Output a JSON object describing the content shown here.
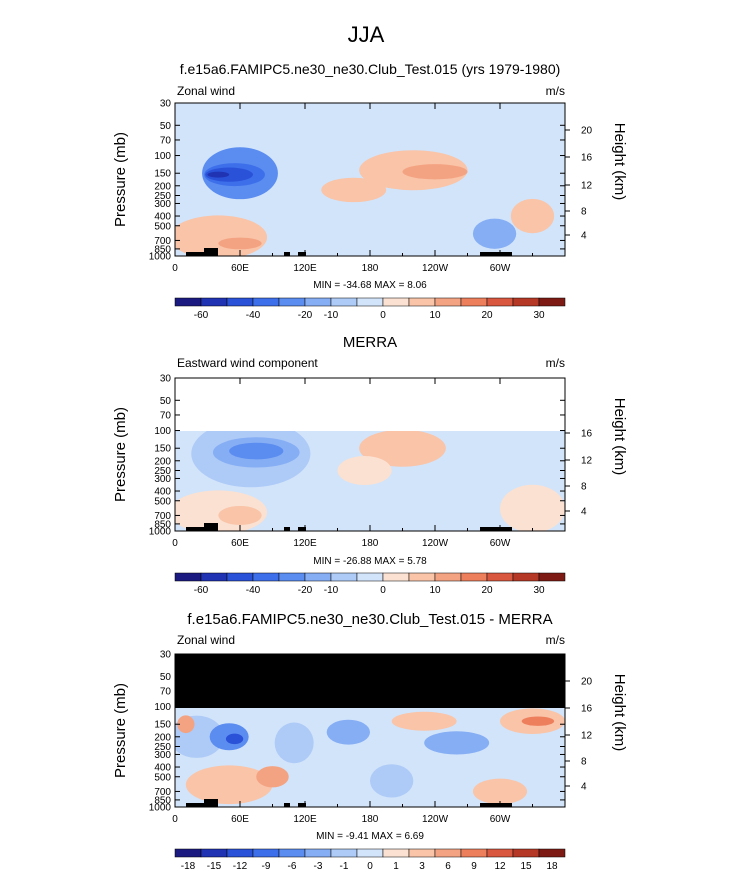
{
  "figure_title": "JJA",
  "chart_data": [
    {
      "type": "heatmap",
      "title": "f.e15a6.FAMIPC5.ne30_ne30.Club_Test.015 (yrs 1979-1980)",
      "left_label": "Zonal wind",
      "units": "m/s",
      "ylabel": "Pressure (mb)",
      "y2label": "Height (km)",
      "y_ticks": [
        "30",
        "50",
        "70",
        "100",
        "150",
        "200",
        "250",
        "300",
        "400",
        "500",
        "700",
        "850",
        "1000"
      ],
      "y2_ticks": [
        "20",
        "16",
        "12",
        "8",
        "4"
      ],
      "x_ticks": [
        "0",
        "60E",
        "120E",
        "180",
        "120W",
        "60W"
      ],
      "stats": "MIN = -34.68  MAX =  8.06",
      "colorbar_labels": [
        "-60",
        "-40",
        "-20",
        "-10",
        "0",
        "10",
        "20",
        "30"
      ],
      "colors": [
        "#1a1a80",
        "#1f33b3",
        "#2a52d8",
        "#3d6fea",
        "#5b8cf0",
        "#86aef4",
        "#aecaf7",
        "#d2e4fa",
        "#fbe1d1",
        "#f9c4a8",
        "#f4a382",
        "#ee7f5d",
        "#d9573f",
        "#b53826",
        "#7d1a14"
      ],
      "fields": [
        {
          "kind": "ellipse",
          "cx": 60,
          "cy": 150,
          "rx": 35,
          "ry": 80,
          "level": 4
        },
        {
          "kind": "ellipse",
          "cx": 55,
          "cy": 155,
          "rx": 28,
          "ry": 40,
          "level": 3
        },
        {
          "kind": "ellipse",
          "cx": 50,
          "cy": 155,
          "rx": 22,
          "ry": 25,
          "level": 2
        },
        {
          "kind": "ellipse",
          "cx": 40,
          "cy": 155,
          "rx": 10,
          "ry": 10,
          "level": 1
        },
        {
          "kind": "ellipse",
          "cx": 220,
          "cy": 140,
          "rx": 50,
          "ry": 60,
          "level": 9
        },
        {
          "kind": "ellipse",
          "cx": 240,
          "cy": 145,
          "rx": 30,
          "ry": 25,
          "level": 10
        },
        {
          "kind": "ellipse",
          "cx": 40,
          "cy": 650,
          "rx": 45,
          "ry": 300,
          "level": 9
        },
        {
          "kind": "ellipse",
          "cx": 60,
          "cy": 750,
          "rx": 20,
          "ry": 100,
          "level": 10
        },
        {
          "kind": "ellipse",
          "cx": 165,
          "cy": 220,
          "rx": 30,
          "ry": 60,
          "level": 9
        },
        {
          "kind": "ellipse",
          "cx": 295,
          "cy": 600,
          "rx": 20,
          "ry": 200,
          "level": 5
        },
        {
          "kind": "ellipse",
          "cx": 330,
          "cy": 400,
          "rx": 20,
          "ry": 150,
          "level": 9
        }
      ]
    },
    {
      "type": "heatmap",
      "title": "MERRA",
      "left_label": "Eastward wind component",
      "units": "m/s",
      "ylabel": "Pressure (mb)",
      "y2label": "Height (km)",
      "y_ticks": [
        "30",
        "50",
        "70",
        "100",
        "150",
        "200",
        "250",
        "300",
        "400",
        "500",
        "700",
        "850",
        "1000"
      ],
      "y2_ticks": [
        "16",
        "12",
        "8",
        "4"
      ],
      "x_ticks": [
        "0",
        "60E",
        "120E",
        "180",
        "120W",
        "60W"
      ],
      "stats": "MIN = -26.88  MAX =  5.78",
      "colorbar_labels": [
        "-60",
        "-40",
        "-20",
        "-10",
        "0",
        "10",
        "20",
        "30"
      ],
      "colors": [
        "#1a1a80",
        "#1f33b3",
        "#2a52d8",
        "#3d6fea",
        "#5b8cf0",
        "#86aef4",
        "#aecaf7",
        "#d2e4fa",
        "#fbe1d1",
        "#f9c4a8",
        "#f4a382",
        "#ee7f5d",
        "#d9573f",
        "#b53826",
        "#7d1a14"
      ],
      "fields": [
        {
          "kind": "ellipse",
          "cx": 70,
          "cy": 170,
          "rx": 55,
          "ry": 110,
          "level": 6
        },
        {
          "kind": "ellipse",
          "cx": 75,
          "cy": 165,
          "rx": 40,
          "ry": 55,
          "level": 5
        },
        {
          "kind": "ellipse",
          "cx": 75,
          "cy": 160,
          "rx": 25,
          "ry": 30,
          "level": 4
        },
        {
          "kind": "ellipse",
          "cx": 210,
          "cy": 150,
          "rx": 40,
          "ry": 60,
          "level": 9
        },
        {
          "kind": "ellipse",
          "cx": 40,
          "cy": 650,
          "rx": 45,
          "ry": 300,
          "level": 8
        },
        {
          "kind": "ellipse",
          "cx": 60,
          "cy": 700,
          "rx": 20,
          "ry": 150,
          "level": 9
        },
        {
          "kind": "ellipse",
          "cx": 175,
          "cy": 250,
          "rx": 25,
          "ry": 80,
          "level": 8
        },
        {
          "kind": "ellipse",
          "cx": 330,
          "cy": 600,
          "rx": 30,
          "ry": 300,
          "level": 8
        }
      ]
    },
    {
      "type": "heatmap",
      "title": "f.e15a6.FAMIPC5.ne30_ne30.Club_Test.015 - MERRA",
      "left_label": "Zonal wind",
      "units": "m/s",
      "ylabel": "Pressure (mb)",
      "y2label": "Height (km)",
      "y_ticks": [
        "30",
        "50",
        "70",
        "100",
        "150",
        "200",
        "250",
        "300",
        "400",
        "500",
        "700",
        "850",
        "1000"
      ],
      "y2_ticks": [
        "20",
        "16",
        "12",
        "8",
        "4"
      ],
      "x_ticks": [
        "0",
        "60E",
        "120E",
        "180",
        "120W",
        "60W"
      ],
      "stats": "MIN = -9.41  MAX =  6.69",
      "colorbar_labels": [
        "-18",
        "-15",
        "-12",
        "-9",
        "-6",
        "-3",
        "-1",
        "0",
        "1",
        "3",
        "6",
        "9",
        "12",
        "15",
        "18"
      ],
      "colors": [
        "#1a1a80",
        "#1f33b3",
        "#2a52d8",
        "#3d6fea",
        "#5b8cf0",
        "#86aef4",
        "#aecaf7",
        "#d2e4fa",
        "#fbe1d1",
        "#f9c4a8",
        "#f4a382",
        "#ee7f5d",
        "#d9573f",
        "#b53826",
        "#7d1a14"
      ],
      "fields": [
        {
          "kind": "ellipse",
          "cx": 20,
          "cy": 200,
          "rx": 25,
          "ry": 90,
          "level": 6
        },
        {
          "kind": "ellipse",
          "cx": 50,
          "cy": 200,
          "rx": 18,
          "ry": 60,
          "level": 4
        },
        {
          "kind": "ellipse",
          "cx": 55,
          "cy": 210,
          "rx": 8,
          "ry": 25,
          "level": 2
        },
        {
          "kind": "ellipse",
          "cx": 110,
          "cy": 230,
          "rx": 18,
          "ry": 100,
          "level": 6
        },
        {
          "kind": "ellipse",
          "cx": 160,
          "cy": 180,
          "rx": 20,
          "ry": 50,
          "level": 5
        },
        {
          "kind": "ellipse",
          "cx": 230,
          "cy": 140,
          "rx": 30,
          "ry": 30,
          "level": 9
        },
        {
          "kind": "ellipse",
          "cx": 260,
          "cy": 230,
          "rx": 30,
          "ry": 60,
          "level": 5
        },
        {
          "kind": "ellipse",
          "cx": 330,
          "cy": 140,
          "rx": 30,
          "ry": 40,
          "level": 9
        },
        {
          "kind": "ellipse",
          "cx": 335,
          "cy": 140,
          "rx": 15,
          "ry": 15,
          "level": 11
        },
        {
          "kind": "ellipse",
          "cx": 50,
          "cy": 600,
          "rx": 40,
          "ry": 250,
          "level": 9
        },
        {
          "kind": "ellipse",
          "cx": 90,
          "cy": 500,
          "rx": 15,
          "ry": 120,
          "level": 10
        },
        {
          "kind": "ellipse",
          "cx": 200,
          "cy": 550,
          "rx": 20,
          "ry": 200,
          "level": 6
        },
        {
          "kind": "ellipse",
          "cx": 300,
          "cy": 700,
          "rx": 25,
          "ry": 200,
          "level": 9
        },
        {
          "kind": "ellipse",
          "cx": 10,
          "cy": 150,
          "rx": 8,
          "ry": 30,
          "level": 10
        }
      ]
    }
  ]
}
